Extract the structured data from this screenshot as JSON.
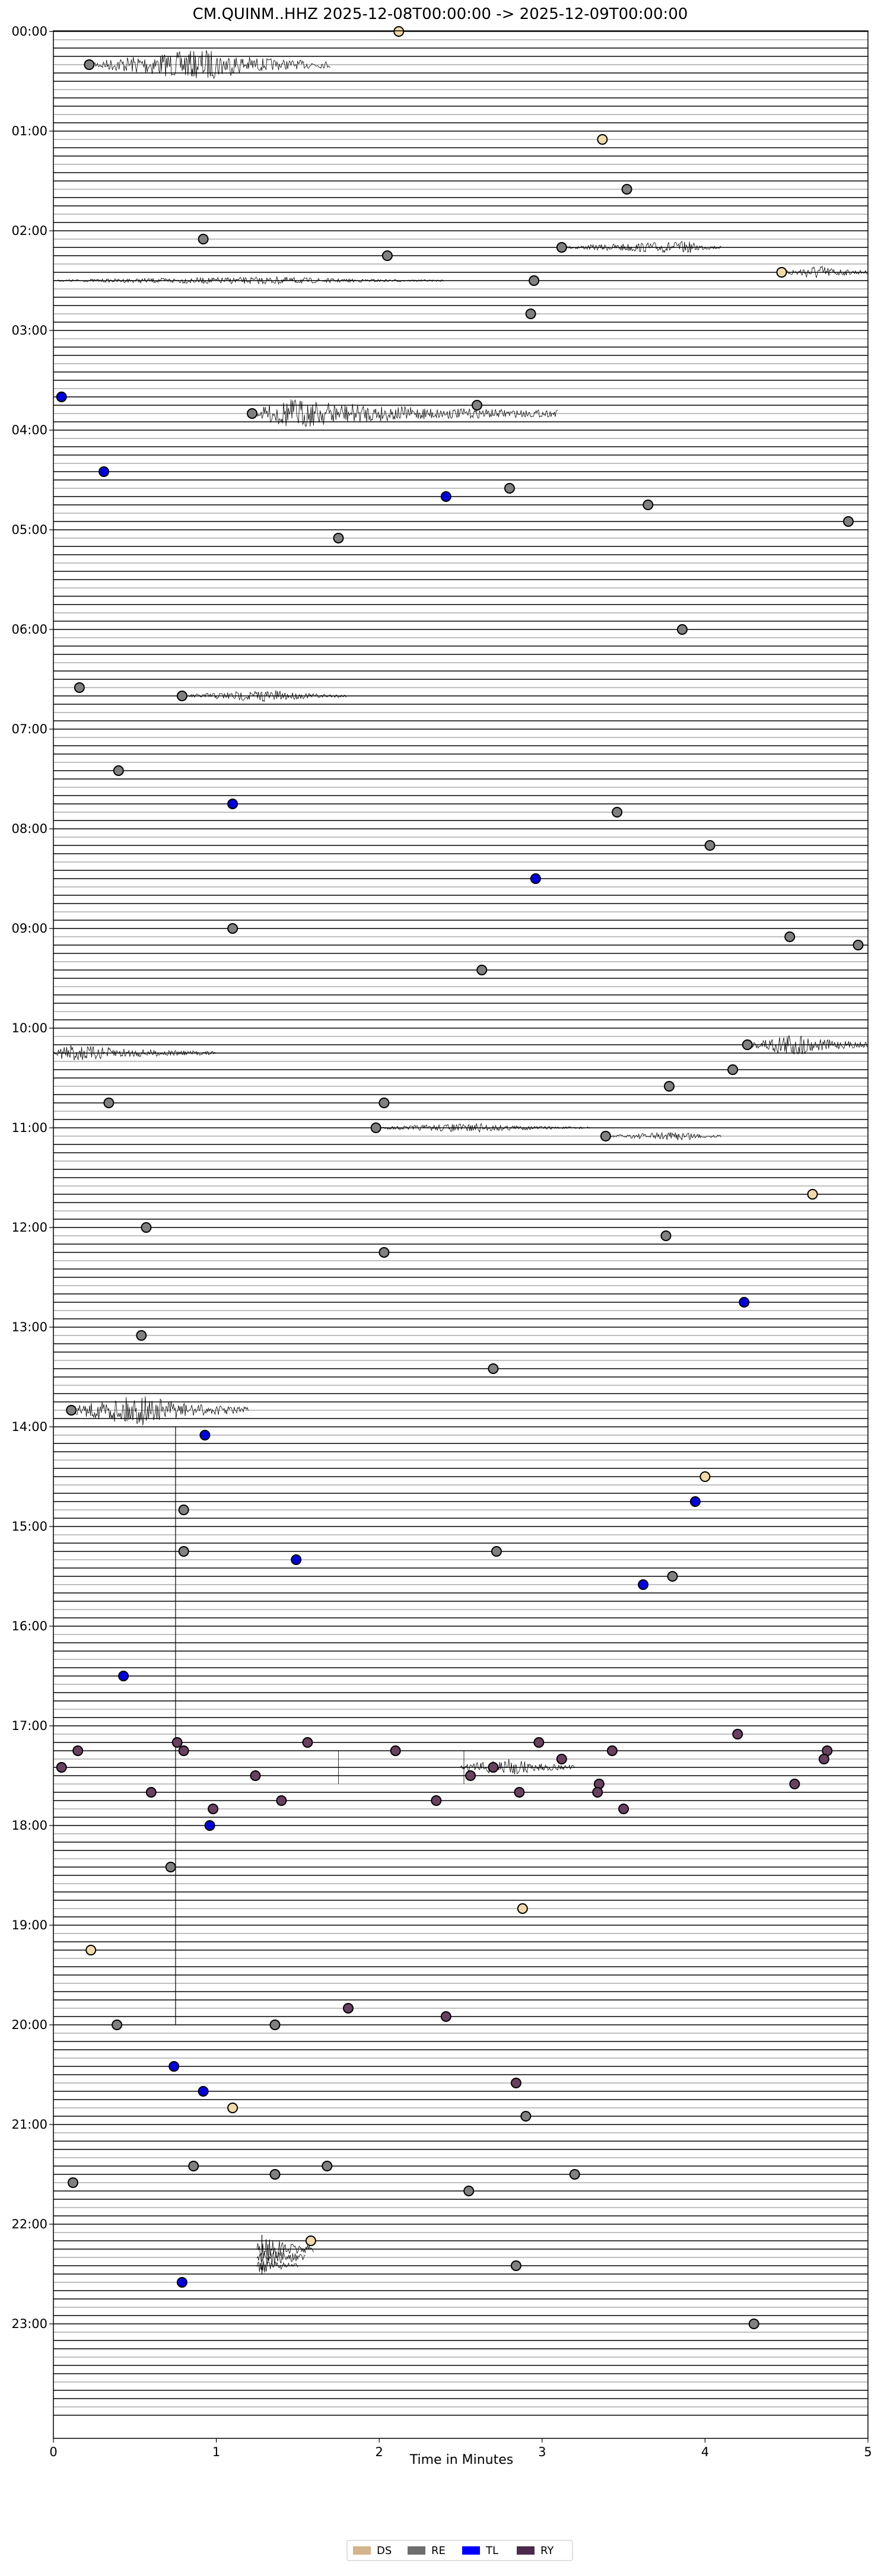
{
  "chart_data": {
    "type": "scatter",
    "title": "CM.QUINM..HHZ  2025-12-08T00:00:00 -> 2025-12-09T00:00:00",
    "xlabel": "Time in Minutes",
    "ylabel": "",
    "xlim": [
      0,
      5
    ],
    "x_ticks": [
      "0",
      "1",
      "2",
      "3",
      "4",
      "5"
    ],
    "y_ticks": [
      "00:00",
      "01:00",
      "02:00",
      "03:00",
      "04:00",
      "05:00",
      "06:00",
      "07:00",
      "08:00",
      "09:00",
      "10:00",
      "11:00",
      "12:00",
      "13:00",
      "14:00",
      "15:00",
      "16:00",
      "17:00",
      "18:00",
      "19:00",
      "20:00",
      "21:00",
      "22:00",
      "23:00"
    ],
    "trace_minutes": 5,
    "traces_per_hour": 12,
    "trace_count": 288,
    "legend": {
      "position": "bottom-center",
      "entries": [
        {
          "label": "DS",
          "color": "#d4b48c"
        },
        {
          "label": "RE",
          "color": "#6e6e6e"
        },
        {
          "label": "TL",
          "color": "#0000ff"
        },
        {
          "label": "RY",
          "color": "#4a2a4a"
        }
      ]
    },
    "colors": {
      "DS": "#f2d9a8",
      "RE": "#808080",
      "TL": "#0000e0",
      "RY": "#6a4060"
    },
    "series": [
      {
        "name": "DS",
        "points": [
          {
            "x": 2.12,
            "y": "00:00"
          },
          {
            "x": 3.37,
            "y": "01:05"
          },
          {
            "x": 4.47,
            "y": "02:25"
          },
          {
            "x": 4.66,
            "y": "11:40"
          },
          {
            "x": 4.0,
            "y": "14:30"
          },
          {
            "x": 2.88,
            "y": "18:50"
          },
          {
            "x": 0.23,
            "y": "19:15"
          },
          {
            "x": 1.1,
            "y": "20:50"
          },
          {
            "x": 1.58,
            "y": "22:10"
          }
        ]
      },
      {
        "name": "RE",
        "points": [
          {
            "x": 0.22,
            "y": "00:20"
          },
          {
            "x": 3.52,
            "y": "01:35"
          },
          {
            "x": 0.92,
            "y": "02:05"
          },
          {
            "x": 2.05,
            "y": "02:15"
          },
          {
            "x": 3.12,
            "y": "02:10"
          },
          {
            "x": 2.95,
            "y": "02:30"
          },
          {
            "x": 2.93,
            "y": "02:50"
          },
          {
            "x": 2.6,
            "y": "03:45"
          },
          {
            "x": 1.22,
            "y": "03:50"
          },
          {
            "x": 2.8,
            "y": "04:35"
          },
          {
            "x": 3.65,
            "y": "04:45"
          },
          {
            "x": 4.88,
            "y": "04:55"
          },
          {
            "x": 1.75,
            "y": "05:05"
          },
          {
            "x": 3.86,
            "y": "06:00"
          },
          {
            "x": 0.16,
            "y": "06:35"
          },
          {
            "x": 0.79,
            "y": "06:40"
          },
          {
            "x": 0.4,
            "y": "07:25"
          },
          {
            "x": 3.46,
            "y": "07:50"
          },
          {
            "x": 4.03,
            "y": "08:10"
          },
          {
            "x": 1.1,
            "y": "09:00"
          },
          {
            "x": 4.52,
            "y": "09:05"
          },
          {
            "x": 4.94,
            "y": "09:10"
          },
          {
            "x": 2.63,
            "y": "09:25"
          },
          {
            "x": 4.26,
            "y": "10:10"
          },
          {
            "x": 4.17,
            "y": "10:25"
          },
          {
            "x": 3.78,
            "y": "10:35"
          },
          {
            "x": 0.34,
            "y": "10:45"
          },
          {
            "x": 2.03,
            "y": "10:45"
          },
          {
            "x": 1.98,
            "y": "11:00"
          },
          {
            "x": 3.39,
            "y": "11:05"
          },
          {
            "x": 0.57,
            "y": "12:00"
          },
          {
            "x": 3.76,
            "y": "12:05"
          },
          {
            "x": 2.03,
            "y": "12:15"
          },
          {
            "x": 0.54,
            "y": "13:05"
          },
          {
            "x": 2.7,
            "y": "13:25"
          },
          {
            "x": 0.11,
            "y": "13:50"
          },
          {
            "x": 0.8,
            "y": "14:50"
          },
          {
            "x": 0.8,
            "y": "15:15"
          },
          {
            "x": 2.72,
            "y": "15:15"
          },
          {
            "x": 3.8,
            "y": "15:30"
          },
          {
            "x": 0.72,
            "y": "18:25"
          },
          {
            "x": 0.39,
            "y": "20:00"
          },
          {
            "x": 1.36,
            "y": "20:00"
          },
          {
            "x": 2.9,
            "y": "20:55"
          },
          {
            "x": 0.86,
            "y": "21:25"
          },
          {
            "x": 1.68,
            "y": "21:25"
          },
          {
            "x": 1.36,
            "y": "21:30"
          },
          {
            "x": 3.2,
            "y": "21:30"
          },
          {
            "x": 0.12,
            "y": "21:35"
          },
          {
            "x": 2.55,
            "y": "21:40"
          },
          {
            "x": 2.84,
            "y": "22:25"
          },
          {
            "x": 4.3,
            "y": "23:00"
          }
        ]
      },
      {
        "name": "TL",
        "points": [
          {
            "x": 0.05,
            "y": "03:40"
          },
          {
            "x": 0.31,
            "y": "04:25"
          },
          {
            "x": 2.41,
            "y": "04:40"
          },
          {
            "x": 1.1,
            "y": "07:45"
          },
          {
            "x": 2.96,
            "y": "08:30"
          },
          {
            "x": 4.24,
            "y": "12:45"
          },
          {
            "x": 0.93,
            "y": "14:05"
          },
          {
            "x": 3.94,
            "y": "14:45"
          },
          {
            "x": 1.49,
            "y": "15:20"
          },
          {
            "x": 3.62,
            "y": "15:35"
          },
          {
            "x": 0.43,
            "y": "16:30"
          },
          {
            "x": 0.96,
            "y": "18:00"
          },
          {
            "x": 0.74,
            "y": "20:25"
          },
          {
            "x": 0.92,
            "y": "20:40"
          },
          {
            "x": 0.79,
            "y": "22:35"
          }
        ]
      },
      {
        "name": "RY",
        "points": [
          {
            "x": 0.76,
            "y": "17:10"
          },
          {
            "x": 4.2,
            "y": "17:05"
          },
          {
            "x": 1.56,
            "y": "17:10"
          },
          {
            "x": 2.98,
            "y": "17:10"
          },
          {
            "x": 0.15,
            "y": "17:15"
          },
          {
            "x": 0.8,
            "y": "17:15"
          },
          {
            "x": 2.1,
            "y": "17:15"
          },
          {
            "x": 3.43,
            "y": "17:15"
          },
          {
            "x": 4.75,
            "y": "17:15"
          },
          {
            "x": 3.12,
            "y": "17:20"
          },
          {
            "x": 4.73,
            "y": "17:20"
          },
          {
            "x": 0.05,
            "y": "17:25"
          },
          {
            "x": 2.7,
            "y": "17:25"
          },
          {
            "x": 1.24,
            "y": "17:30"
          },
          {
            "x": 2.56,
            "y": "17:30"
          },
          {
            "x": 3.35,
            "y": "17:35"
          },
          {
            "x": 4.55,
            "y": "17:35"
          },
          {
            "x": 0.6,
            "y": "17:40"
          },
          {
            "x": 2.86,
            "y": "17:40"
          },
          {
            "x": 3.34,
            "y": "17:40"
          },
          {
            "x": 1.4,
            "y": "17:45"
          },
          {
            "x": 2.35,
            "y": "17:45"
          },
          {
            "x": 0.98,
            "y": "17:50"
          },
          {
            "x": 3.5,
            "y": "17:50"
          },
          {
            "x": 1.81,
            "y": "19:50"
          },
          {
            "x": 2.41,
            "y": "19:55"
          },
          {
            "x": 2.84,
            "y": "20:35"
          }
        ]
      }
    ],
    "events": [
      {
        "y": "00:20",
        "x_start": 0.24,
        "x_end": 1.7,
        "peak_x": 0.95,
        "strength": 1.0
      },
      {
        "y": "02:10",
        "x_start": 3.15,
        "x_end": 4.1,
        "peak_x": 3.9,
        "strength": 0.4
      },
      {
        "y": "02:25",
        "x_start": 4.5,
        "x_end": 5.0,
        "peak_x": 4.7,
        "strength": 0.5
      },
      {
        "y": "02:30",
        "x_start": 0.0,
        "x_end": 2.4,
        "peak_x": 1.4,
        "strength": 0.25
      },
      {
        "y": "03:50",
        "x_start": 1.25,
        "x_end": 3.1,
        "peak_x": 1.45,
        "strength": 1.0
      },
      {
        "y": "06:40",
        "x_start": 0.82,
        "x_end": 1.8,
        "peak_x": 1.35,
        "strength": 0.4
      },
      {
        "y": "10:10",
        "x_start": 4.28,
        "x_end": 5.0,
        "peak_x": 4.55,
        "strength": 0.8
      },
      {
        "y": "10:15",
        "x_start": 0.0,
        "x_end": 1.0,
        "peak_x": 0.1,
        "strength": 0.6
      },
      {
        "y": "11:00",
        "x_start": 2.0,
        "x_end": 3.3,
        "peak_x": 2.6,
        "strength": 0.3
      },
      {
        "y": "11:05",
        "x_start": 3.42,
        "x_end": 4.1,
        "peak_x": 3.9,
        "strength": 0.3
      },
      {
        "y": "13:50",
        "x_start": 0.1,
        "x_end": 1.2,
        "peak_x": 0.55,
        "strength": 1.0
      },
      {
        "y": "17:25",
        "x_start": 2.5,
        "x_end": 3.2,
        "peak_x": 2.8,
        "strength": 0.6
      },
      {
        "y": "22:15",
        "x_start": 1.25,
        "x_end": 1.6,
        "peak_x": 1.28,
        "strength": 1.0
      },
      {
        "y": "22:20",
        "x_start": 1.25,
        "x_end": 1.55,
        "peak_x": 1.28,
        "strength": 0.9
      },
      {
        "y": "22:25",
        "x_start": 1.25,
        "x_end": 1.5,
        "peak_x": 1.28,
        "strength": 0.6
      }
    ]
  }
}
